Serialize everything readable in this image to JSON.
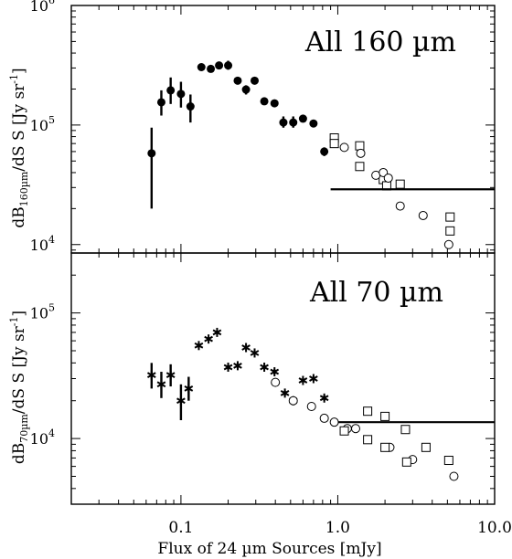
{
  "chart_data": [
    {
      "type": "scatter",
      "panel": "top",
      "annotation": "All 160 µm",
      "ylabel": "dB",
      "ylabel_sub": "160µm",
      "ylabel_rest": "/dS S [Jy sr",
      "ylabel_sup": "-1",
      "ylabel_close": "]",
      "xscale": "log",
      "yscale": "log",
      "xlim": [
        0.02,
        10.0
      ],
      "ylim": [
        8500,
        1000000
      ],
      "ytick_labels": [
        {
          "base": "10",
          "exp": "4",
          "value": 10000
        },
        {
          "base": "10",
          "exp": "5",
          "value": 100000
        },
        {
          "base": "10",
          "exp": "6",
          "value": 1000000
        }
      ],
      "series": [
        {
          "marker": "filled-circle",
          "points": [
            {
              "x": 0.065,
              "y": 58000,
              "ylo": 20000,
              "yhi": 95000
            },
            {
              "x": 0.075,
              "y": 155000,
              "ylo": 120000,
              "yhi": 195000
            },
            {
              "x": 0.086,
              "y": 195000,
              "ylo": 150000,
              "yhi": 250000
            },
            {
              "x": 0.1,
              "y": 182000,
              "ylo": 140000,
              "yhi": 230000
            },
            {
              "x": 0.115,
              "y": 143000,
              "ylo": 105000,
              "yhi": 180000
            },
            {
              "x": 0.135,
              "y": 305000,
              "ylo": 290000,
              "yhi": 320000
            },
            {
              "x": 0.155,
              "y": 295000,
              "ylo": 280000,
              "yhi": 310000
            },
            {
              "x": 0.175,
              "y": 315000,
              "ylo": 295000,
              "yhi": 335000
            },
            {
              "x": 0.2,
              "y": 315000,
              "ylo": 290000,
              "yhi": 345000
            },
            {
              "x": 0.23,
              "y": 235000,
              "ylo": 225000,
              "yhi": 245000
            },
            {
              "x": 0.26,
              "y": 198000,
              "ylo": 180000,
              "yhi": 215000
            },
            {
              "x": 0.295,
              "y": 235000,
              "ylo": 225000,
              "yhi": 245000
            },
            {
              "x": 0.34,
              "y": 158000,
              "ylo": 150000,
              "yhi": 165000
            },
            {
              "x": 0.395,
              "y": 152000,
              "ylo": 145000,
              "yhi": 160000
            },
            {
              "x": 0.45,
              "y": 105000,
              "ylo": 95000,
              "yhi": 118000
            },
            {
              "x": 0.52,
              "y": 105000,
              "ylo": 95000,
              "yhi": 118000
            },
            {
              "x": 0.6,
              "y": 113000,
              "ylo": 108000,
              "yhi": 118000
            },
            {
              "x": 0.7,
              "y": 103000,
              "ylo": 98000,
              "yhi": 108000
            },
            {
              "x": 0.82,
              "y": 60000,
              "ylo": 55000,
              "yhi": 65000
            }
          ]
        },
        {
          "marker": "open-square",
          "points": [
            {
              "x": 0.95,
              "y": 78000
            },
            {
              "x": 0.95,
              "y": 70000
            },
            {
              "x": 1.38,
              "y": 67000
            },
            {
              "x": 1.38,
              "y": 45000
            },
            {
              "x": 1.95,
              "y": 35000
            },
            {
              "x": 2.05,
              "y": 31000
            },
            {
              "x": 2.5,
              "y": 32000
            },
            {
              "x": 5.2,
              "y": 17000
            },
            {
              "x": 5.2,
              "y": 13000
            }
          ]
        },
        {
          "marker": "open-circle",
          "points": [
            {
              "x": 1.1,
              "y": 65000
            },
            {
              "x": 1.4,
              "y": 58000
            },
            {
              "x": 1.75,
              "y": 38000
            },
            {
              "x": 1.95,
              "y": 40000
            },
            {
              "x": 2.1,
              "y": 36000
            },
            {
              "x": 2.5,
              "y": 21000
            },
            {
              "x": 3.5,
              "y": 17500
            },
            {
              "x": 5.1,
              "y": 10000
            }
          ]
        },
        {
          "marker": "line",
          "points": [
            {
              "x": 0.9,
              "y": 29000
            },
            {
              "x": 10.0,
              "y": 29000
            }
          ]
        }
      ]
    },
    {
      "type": "scatter",
      "panel": "bottom",
      "annotation": "All 70 µm",
      "ylabel": "dB",
      "ylabel_sub": "70µm",
      "ylabel_rest": "/dS S [Jy sr",
      "ylabel_sup": "-1",
      "ylabel_close": "]",
      "xlabel": "Flux of 24 µm Sources [mJy]",
      "xscale": "log",
      "yscale": "log",
      "xlim": [
        0.02,
        10.0
      ],
      "ylim": [
        3000,
        300000
      ],
      "xtick_labels": [
        {
          "label": "0.1",
          "value": 0.1
        },
        {
          "label": "1.0",
          "value": 1.0
        },
        {
          "label": "10.0",
          "value": 10.0
        }
      ],
      "ytick_labels": [
        {
          "base": "10",
          "exp": "4",
          "value": 10000
        },
        {
          "base": "10",
          "exp": "5",
          "value": 100000
        }
      ],
      "series": [
        {
          "marker": "asterisk",
          "points": [
            {
              "x": 0.065,
              "y": 32000,
              "ylo": 25000,
              "yhi": 40000
            },
            {
              "x": 0.075,
              "y": 27000,
              "ylo": 21000,
              "yhi": 34000
            },
            {
              "x": 0.086,
              "y": 32000,
              "ylo": 26000,
              "yhi": 39000
            },
            {
              "x": 0.1,
              "y": 20000,
              "ylo": 14000,
              "yhi": 27000
            },
            {
              "x": 0.112,
              "y": 25000,
              "ylo": 20000,
              "yhi": 31000
            },
            {
              "x": 0.13,
              "y": 55000,
              "ylo": 53000,
              "yhi": 57000
            },
            {
              "x": 0.15,
              "y": 62000,
              "ylo": 60000,
              "yhi": 64000
            },
            {
              "x": 0.17,
              "y": 70000,
              "ylo": 68000,
              "yhi": 72000
            },
            {
              "x": 0.2,
              "y": 37000,
              "ylo": 35500,
              "yhi": 38500
            },
            {
              "x": 0.23,
              "y": 38000,
              "ylo": 36500,
              "yhi": 39500
            },
            {
              "x": 0.26,
              "y": 53000,
              "ylo": 51500,
              "yhi": 54500
            },
            {
              "x": 0.295,
              "y": 48000,
              "ylo": 46500,
              "yhi": 49500
            },
            {
              "x": 0.34,
              "y": 37000,
              "ylo": 35500,
              "yhi": 38500
            },
            {
              "x": 0.395,
              "y": 34000,
              "ylo": 32500,
              "yhi": 35500
            },
            {
              "x": 0.46,
              "y": 23000,
              "ylo": 22000,
              "yhi": 24000
            },
            {
              "x": 0.52,
              "y": 20000,
              "ylo": 19000,
              "yhi": 21000
            },
            {
              "x": 0.6,
              "y": 29000,
              "ylo": 28000,
              "yhi": 30000
            },
            {
              "x": 0.7,
              "y": 30000,
              "ylo": 29000,
              "yhi": 31000
            },
            {
              "x": 0.82,
              "y": 21000,
              "ylo": 20000,
              "yhi": 22000
            }
          ]
        },
        {
          "marker": "open-circle",
          "points": [
            {
              "x": 0.4,
              "y": 28000
            },
            {
              "x": 0.52,
              "y": 20000
            },
            {
              "x": 0.68,
              "y": 18000
            },
            {
              "x": 0.82,
              "y": 14500
            },
            {
              "x": 0.95,
              "y": 13500
            },
            {
              "x": 1.15,
              "y": 12000
            },
            {
              "x": 1.3,
              "y": 12000
            },
            {
              "x": 2.15,
              "y": 8500
            },
            {
              "x": 3.0,
              "y": 6800
            },
            {
              "x": 5.5,
              "y": 5000
            }
          ]
        },
        {
          "marker": "open-square",
          "points": [
            {
              "x": 1.1,
              "y": 11500
            },
            {
              "x": 1.55,
              "y": 16500
            },
            {
              "x": 1.55,
              "y": 9800
            },
            {
              "x": 2.0,
              "y": 15000
            },
            {
              "x": 2.0,
              "y": 8500
            },
            {
              "x": 2.7,
              "y": 11800
            },
            {
              "x": 2.75,
              "y": 6500
            },
            {
              "x": 3.65,
              "y": 8500
            },
            {
              "x": 5.1,
              "y": 6700
            }
          ]
        },
        {
          "marker": "line",
          "points": [
            {
              "x": 1.0,
              "y": 13500
            },
            {
              "x": 10.0,
              "y": 13500
            }
          ]
        }
      ]
    }
  ]
}
